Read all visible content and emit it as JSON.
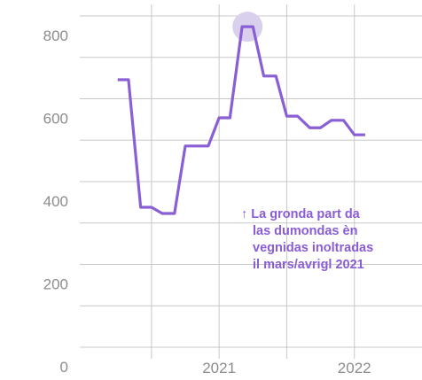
{
  "chart_data": {
    "type": "line",
    "x": [
      2020.25,
      2020.33,
      2020.42,
      2020.5,
      2020.58,
      2020.67,
      2020.75,
      2020.92,
      2021.0,
      2021.08,
      2021.17,
      2021.25,
      2021.33,
      2021.42,
      2021.5,
      2021.58,
      2021.67,
      2021.75,
      2021.83,
      2021.92,
      2022.0,
      2022.08
    ],
    "series": [
      {
        "color": "#8a5fd6",
        "values": [
          646,
          646,
          338,
          338,
          323,
          323,
          486,
          486,
          554,
          554,
          774,
          774,
          655,
          655,
          558,
          558,
          530,
          530,
          548,
          548,
          513,
          513
        ]
      }
    ],
    "xlim": [
      2019.97,
      2022.5
    ],
    "xticks": [
      2021,
      2022
    ],
    "xgrid": [
      2020.5,
      2021,
      2021.5,
      2022
    ],
    "ylim": [
      0,
      800
    ],
    "yticks": [
      0,
      200,
      400,
      600,
      800
    ],
    "ygrid": [
      0,
      100,
      200,
      300,
      400,
      500,
      600,
      700,
      800
    ],
    "highlight_color": "#d8d0ec",
    "annotation": [
      "↑ La gronda part da",
      "las dumondas èn",
      "vegnidas inoltradas",
      "il mars/avrigl 2021"
    ]
  }
}
